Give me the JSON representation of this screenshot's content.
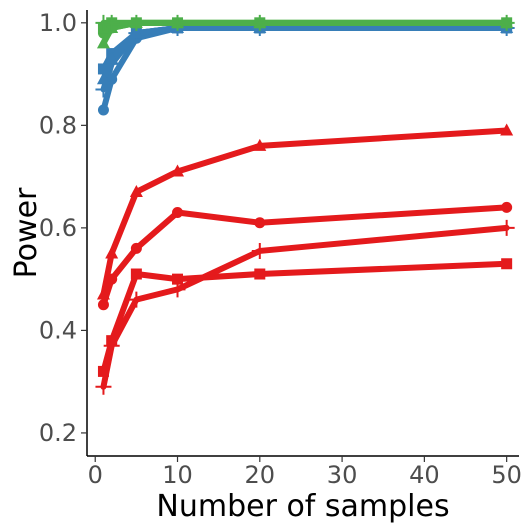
{
  "chart_data": {
    "type": "line",
    "title": "",
    "xlabel": "Number of samples",
    "ylabel": "Power",
    "xlim": [
      -1,
      51.5
    ],
    "ylim": [
      0.155,
      1.025
    ],
    "xticks": [
      0,
      10,
      20,
      30,
      40,
      50
    ],
    "yticks": [
      0.2,
      0.4,
      0.6,
      0.8,
      1.0
    ],
    "ytick_labels": [
      "0.2",
      "0.4",
      "0.6",
      "0.8",
      "1.0"
    ],
    "grid": false,
    "legend": "none",
    "x": [
      1,
      2,
      5,
      10,
      20,
      50
    ],
    "series": [
      {
        "color": "#E41A1C",
        "marker": "circle",
        "values": [
          0.45,
          0.5,
          0.56,
          0.63,
          0.61,
          0.64
        ]
      },
      {
        "color": "#E41A1C",
        "marker": "triangle",
        "values": [
          0.47,
          0.55,
          0.67,
          0.71,
          0.76,
          0.79
        ]
      },
      {
        "color": "#E41A1C",
        "marker": "square",
        "values": [
          0.32,
          0.38,
          0.51,
          0.5,
          0.51,
          0.53
        ]
      },
      {
        "color": "#E41A1C",
        "marker": "plus",
        "values": [
          0.29,
          0.37,
          0.46,
          0.48,
          0.555,
          0.6
        ]
      },
      {
        "color": "#377EB8",
        "marker": "circle",
        "values": [
          0.83,
          0.89,
          0.97,
          0.99,
          0.99,
          0.99
        ]
      },
      {
        "color": "#377EB8",
        "marker": "square",
        "values": [
          0.91,
          0.94,
          0.98,
          0.99,
          0.99,
          0.99
        ]
      },
      {
        "color": "#377EB8",
        "marker": "plus",
        "values": [
          0.87,
          0.92,
          0.98,
          0.99,
          0.99,
          0.99
        ]
      },
      {
        "color": "#377EB8",
        "marker": "triangle",
        "values": [
          0.89,
          0.93,
          0.98,
          0.99,
          0.99,
          0.99
        ]
      },
      {
        "color": "#4DAF4A",
        "marker": "circle",
        "values": [
          0.98,
          0.99,
          1.0,
          1.0,
          1.0,
          1.0
        ]
      },
      {
        "color": "#4DAF4A",
        "marker": "triangle",
        "values": [
          0.96,
          0.99,
          1.0,
          1.0,
          1.0,
          1.0
        ]
      },
      {
        "color": "#4DAF4A",
        "marker": "square",
        "values": [
          0.99,
          1.0,
          1.0,
          1.0,
          1.0,
          1.0
        ]
      },
      {
        "color": "#4DAF4A",
        "marker": "plus",
        "values": [
          1.0,
          1.0,
          1.0,
          1.0,
          1.0,
          1.0
        ]
      }
    ]
  }
}
